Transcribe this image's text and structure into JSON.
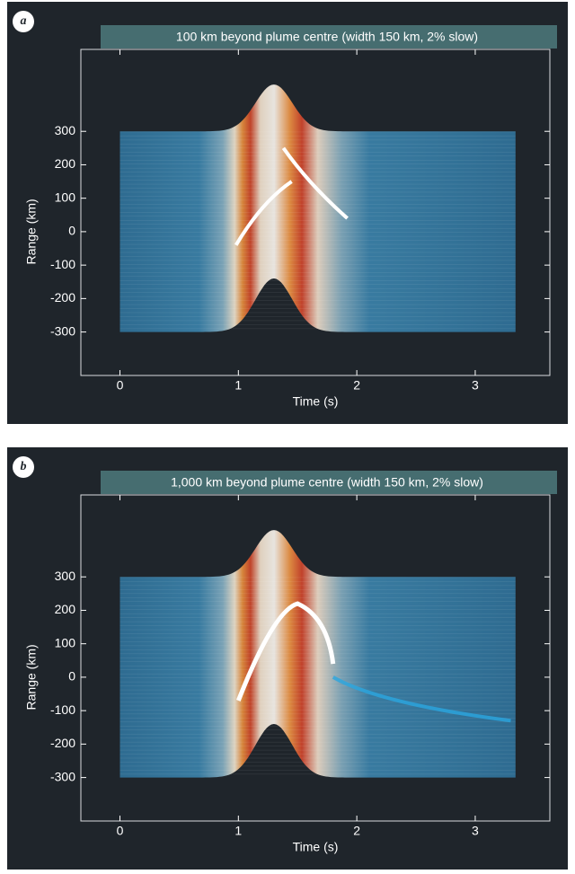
{
  "chart_data": [
    {
      "type": "wavefield",
      "panel": "a",
      "title": "100 km beyond plume centre (width 150 km, 2% slow)",
      "xlabel": "Time (s)",
      "ylabel": "Range (km)",
      "xlim": [
        -0.33,
        3.63
      ],
      "ylim": [
        -430,
        545
      ],
      "xticks": [
        0,
        1,
        2,
        3
      ],
      "yticks": [
        -300,
        -200,
        -100,
        0,
        100,
        200,
        300
      ]
    },
    {
      "type": "wavefield",
      "panel": "b",
      "title": "1,000 km beyond plume centre (width 150 km, 2% slow)",
      "xlabel": "Time (s)",
      "ylabel": "Range (km)",
      "xlim": [
        -0.33,
        3.63
      ],
      "ylim": [
        -430,
        545
      ],
      "xticks": [
        0,
        1,
        2,
        3
      ],
      "yticks": [
        -300,
        -200,
        -100,
        0,
        100,
        200,
        300
      ]
    }
  ]
}
